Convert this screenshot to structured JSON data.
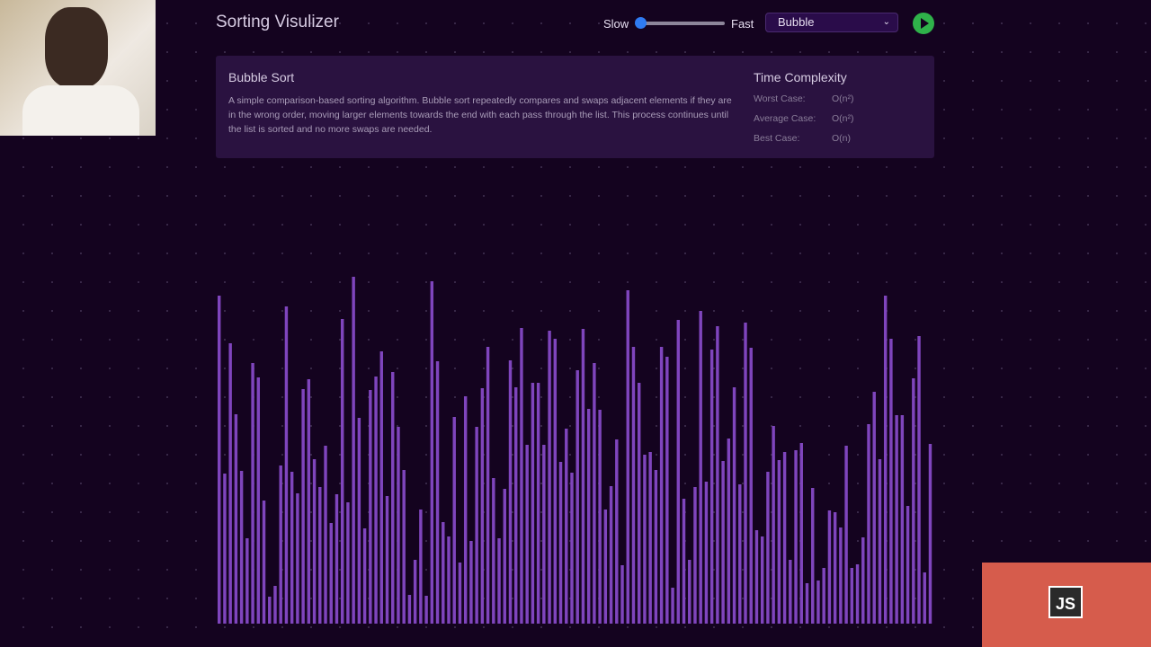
{
  "header": {
    "title": "Sorting Visulizer"
  },
  "controls": {
    "slow": "Slow",
    "fast": "Fast",
    "algorithm": "Bubble"
  },
  "info": {
    "title": "Bubble Sort",
    "description": "A simple comparison-based sorting algorithm. Bubble sort repeatedly compares and swaps adjacent elements if they are in the wrong order, moving larger elements towards the end with each pass through the list. This process continues until the list is sorted and no more swaps are needed.",
    "complexity_title": "Time Complexity",
    "rows": [
      [
        "Worst Case:",
        "O(n²)"
      ],
      [
        "Average Case:",
        "O(n²)"
      ],
      [
        "Best Case:",
        "O(n)"
      ]
    ]
  },
  "array": {
    "color": "#7f45bd",
    "values": [
      365,
      167,
      312,
      233,
      170,
      95,
      290,
      274,
      137,
      30,
      42,
      176,
      353,
      169,
      145,
      261,
      272,
      183,
      152,
      198,
      112,
      144,
      339,
      135,
      386,
      229,
      106,
      260,
      275,
      303,
      142,
      280,
      219,
      171,
      32,
      71,
      127,
      31,
      381,
      292,
      113,
      97,
      230,
      68,
      253,
      92,
      219,
      262,
      308,
      162,
      95,
      150,
      293,
      263,
      329,
      199,
      268,
      268,
      199,
      326,
      317,
      180,
      217,
      168,
      282,
      328,
      239,
      290,
      238,
      127,
      153,
      205,
      65,
      371,
      308,
      268,
      188,
      191,
      171,
      308,
      297,
      40,
      338,
      139,
      71,
      152,
      348,
      158,
      305,
      331,
      181,
      206,
      263,
      155,
      335,
      307,
      104,
      97,
      169,
      220,
      182,
      191,
      71,
      193,
      201,
      45,
      151,
      48,
      62,
      126,
      124,
      107,
      198,
      62,
      66,
      96,
      222,
      258,
      183,
      365,
      317,
      232,
      232,
      131,
      273,
      320,
      57,
      200
    ]
  },
  "logo": {
    "text": "JS"
  }
}
